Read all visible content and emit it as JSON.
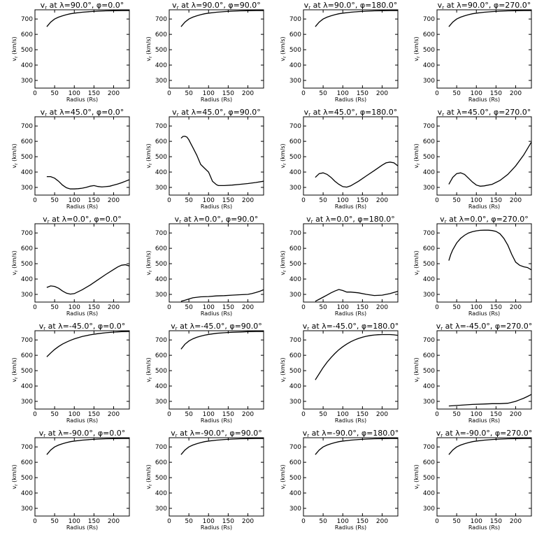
{
  "chart_data": [
    {
      "type": "line",
      "title": "v_r at λ=90.0°, φ=0.0°",
      "xlabel": "Radius (Rs)",
      "ylabel": "v_r (km/s)",
      "xlim": [
        0,
        240
      ],
      "ylim": [
        250,
        760
      ],
      "x": [
        30,
        40,
        50,
        60,
        70,
        80,
        90,
        100,
        120,
        140,
        160,
        180,
        200,
        220,
        240
      ],
      "y": [
        650,
        680,
        700,
        712,
        721,
        728,
        734,
        738,
        744,
        748,
        751,
        753,
        754,
        755,
        755
      ]
    },
    {
      "type": "line",
      "title": "v_r at λ=90.0°, φ=90.0°",
      "xlabel": "Radius (Rs)",
      "ylabel": "v_r (km/s)",
      "xlim": [
        0,
        240
      ],
      "ylim": [
        250,
        760
      ],
      "x": [
        30,
        40,
        50,
        60,
        70,
        80,
        90,
        100,
        120,
        140,
        160,
        180,
        200,
        220,
        240
      ],
      "y": [
        650,
        680,
        700,
        712,
        721,
        728,
        734,
        738,
        744,
        748,
        751,
        753,
        754,
        755,
        755
      ]
    },
    {
      "type": "line",
      "title": "v_r at λ=90.0°, φ=180.0°",
      "xlabel": "Radius (Rs)",
      "ylabel": "v_r (km/s)",
      "xlim": [
        0,
        240
      ],
      "ylim": [
        250,
        760
      ],
      "x": [
        30,
        40,
        50,
        60,
        70,
        80,
        90,
        100,
        120,
        140,
        160,
        180,
        200,
        220,
        240
      ],
      "y": [
        650,
        680,
        700,
        712,
        721,
        728,
        734,
        738,
        744,
        748,
        751,
        753,
        754,
        755,
        755
      ]
    },
    {
      "type": "line",
      "title": "v_r at λ=90.0°, φ=270.0°",
      "xlabel": "Radius (Rs)",
      "ylabel": "v_r (km/s)",
      "xlim": [
        0,
        240
      ],
      "ylim": [
        250,
        760
      ],
      "x": [
        30,
        40,
        50,
        60,
        70,
        80,
        90,
        100,
        120,
        140,
        160,
        180,
        200,
        220,
        240
      ],
      "y": [
        650,
        680,
        700,
        712,
        721,
        728,
        734,
        738,
        744,
        748,
        751,
        753,
        754,
        755,
        755
      ]
    },
    {
      "type": "line",
      "title": "v_r at λ=45.0°, φ=0.0°",
      "xlabel": "Radius (Rs)",
      "ylabel": "v_r (km/s)",
      "xlim": [
        0,
        240
      ],
      "ylim": [
        250,
        760
      ],
      "x": [
        30,
        40,
        50,
        60,
        70,
        80,
        90,
        100,
        110,
        120,
        130,
        140,
        150,
        160,
        170,
        180,
        190,
        200,
        210,
        220,
        230,
        240
      ],
      "y": [
        370,
        370,
        360,
        340,
        315,
        298,
        290,
        290,
        292,
        295,
        300,
        308,
        312,
        306,
        303,
        305,
        308,
        315,
        322,
        330,
        340,
        350
      ]
    },
    {
      "type": "line",
      "title": "v_r at λ=45.0°, φ=90.0°",
      "xlabel": "Radius (Rs)",
      "ylabel": "v_r (km/s)",
      "xlim": [
        0,
        240
      ],
      "ylim": [
        250,
        760
      ],
      "x": [
        30,
        35,
        40,
        45,
        50,
        55,
        60,
        70,
        80,
        90,
        100,
        110,
        120,
        125,
        130,
        140,
        160,
        180,
        200,
        220,
        240
      ],
      "y": [
        620,
        632,
        633,
        628,
        610,
        585,
        560,
        510,
        450,
        425,
        400,
        340,
        318,
        312,
        312,
        312,
        315,
        320,
        325,
        332,
        340
      ]
    },
    {
      "type": "line",
      "title": "v_r at λ=45.0°, φ=180.0°",
      "xlabel": "Radius (Rs)",
      "ylabel": "v_r (km/s)",
      "xlim": [
        0,
        240
      ],
      "ylim": [
        250,
        760
      ],
      "x": [
        30,
        40,
        50,
        60,
        70,
        80,
        90,
        100,
        110,
        120,
        140,
        160,
        180,
        200,
        210,
        220,
        230,
        240
      ],
      "y": [
        365,
        390,
        395,
        385,
        365,
        340,
        320,
        305,
        302,
        310,
        340,
        375,
        410,
        445,
        460,
        465,
        460,
        440
      ]
    },
    {
      "type": "line",
      "title": "v_r at λ=45.0°, φ=270.0°",
      "xlabel": "Radius (Rs)",
      "ylabel": "v_r (km/s)",
      "xlim": [
        0,
        240
      ],
      "ylim": [
        250,
        760
      ],
      "x": [
        30,
        40,
        50,
        60,
        70,
        80,
        90,
        100,
        110,
        120,
        140,
        160,
        180,
        200,
        220,
        240
      ],
      "y": [
        320,
        365,
        390,
        395,
        385,
        360,
        335,
        315,
        308,
        310,
        320,
        345,
        385,
        440,
        510,
        595
      ]
    },
    {
      "type": "line",
      "title": "v_r at λ=0.0°, φ=0.0°",
      "xlabel": "Radius (Rs)",
      "ylabel": "v_r (km/s)",
      "xlim": [
        0,
        240
      ],
      "ylim": [
        250,
        760
      ],
      "x": [
        30,
        40,
        50,
        60,
        70,
        80,
        90,
        100,
        120,
        140,
        160,
        180,
        200,
        210,
        220,
        230,
        240
      ],
      "y": [
        345,
        355,
        352,
        340,
        322,
        308,
        302,
        305,
        330,
        360,
        395,
        430,
        462,
        478,
        490,
        493,
        485
      ]
    },
    {
      "type": "line",
      "title": "v_r at λ=0.0°, φ=90.0°",
      "xlabel": "Radius (Rs)",
      "ylabel": "v_r (km/s)",
      "xlim": [
        0,
        240
      ],
      "ylim": [
        250,
        760
      ],
      "x": [
        30,
        40,
        50,
        60,
        80,
        100,
        120,
        140,
        160,
        180,
        200,
        210,
        220,
        230,
        240
      ],
      "y": [
        255,
        262,
        270,
        278,
        284,
        286,
        290,
        292,
        295,
        298,
        300,
        305,
        312,
        320,
        330
      ]
    },
    {
      "type": "line",
      "title": "v_r at λ=0.0°, φ=180.0°",
      "xlabel": "Radius (Rs)",
      "ylabel": "v_r (km/s)",
      "xlim": [
        0,
        240
      ],
      "ylim": [
        250,
        760
      ],
      "x": [
        30,
        40,
        50,
        60,
        70,
        80,
        90,
        100,
        110,
        120,
        140,
        160,
        180,
        200,
        220,
        240
      ],
      "y": [
        255,
        268,
        282,
        296,
        310,
        322,
        332,
        325,
        315,
        315,
        310,
        300,
        293,
        295,
        305,
        320
      ]
    },
    {
      "type": "line",
      "title": "v_r at λ=0.0°, φ=270.0°",
      "xlabel": "Radius (Rs)",
      "ylabel": "v_r (km/s)",
      "xlim": [
        0,
        240
      ],
      "ylim": [
        250,
        760
      ],
      "x": [
        30,
        35,
        40,
        50,
        60,
        70,
        80,
        90,
        100,
        110,
        120,
        130,
        140,
        150,
        160,
        170,
        180,
        190,
        200,
        210,
        220,
        230,
        240
      ],
      "y": [
        520,
        560,
        590,
        635,
        665,
        685,
        700,
        708,
        714,
        717,
        718,
        718,
        716,
        710,
        695,
        665,
        620,
        560,
        510,
        490,
        480,
        475,
        460
      ]
    },
    {
      "type": "line",
      "title": "v_r at λ=-45.0°, φ=0.0°",
      "xlabel": "Radius (Rs)",
      "ylabel": "v_r (km/s)",
      "xlim": [
        0,
        240
      ],
      "ylim": [
        250,
        760
      ],
      "x": [
        30,
        40,
        50,
        60,
        70,
        80,
        90,
        100,
        120,
        140,
        160,
        180,
        200,
        220,
        240
      ],
      "y": [
        590,
        615,
        638,
        657,
        673,
        686,
        697,
        707,
        722,
        733,
        741,
        747,
        751,
        754,
        755
      ]
    },
    {
      "type": "line",
      "title": "v_r at λ=-45.0°, φ=90.0°",
      "xlabel": "Radius (Rs)",
      "ylabel": "v_r (km/s)",
      "xlim": [
        0,
        240
      ],
      "ylim": [
        250,
        760
      ],
      "x": [
        30,
        40,
        50,
        60,
        70,
        80,
        90,
        100,
        120,
        140,
        160,
        180,
        200,
        220,
        240
      ],
      "y": [
        640,
        672,
        693,
        707,
        717,
        725,
        731,
        736,
        743,
        747,
        750,
        752,
        754,
        755,
        755
      ]
    },
    {
      "type": "line",
      "title": "v_r at λ=-45.0°, φ=180.0°",
      "xlabel": "Radius (Rs)",
      "ylabel": "v_r (km/s)",
      "xlim": [
        0,
        240
      ],
      "ylim": [
        250,
        760
      ],
      "x": [
        30,
        40,
        50,
        60,
        70,
        80,
        90,
        100,
        110,
        120,
        130,
        140,
        150,
        160,
        170,
        180,
        190,
        200,
        210,
        220,
        230,
        240
      ],
      "y": [
        440,
        480,
        520,
        555,
        585,
        612,
        636,
        656,
        673,
        688,
        700,
        710,
        718,
        724,
        729,
        732,
        734,
        735,
        735,
        735,
        733,
        730
      ]
    },
    {
      "type": "line",
      "title": "v_r at λ=-45.0°, φ=270.0°",
      "xlabel": "Radius (Rs)",
      "ylabel": "v_r (km/s)",
      "xlim": [
        0,
        240
      ],
      "ylim": [
        250,
        760
      ],
      "x": [
        30,
        60,
        90,
        120,
        140,
        160,
        180,
        200,
        210,
        220,
        230,
        240
      ],
      "y": [
        270,
        275,
        280,
        283,
        285,
        285,
        288,
        300,
        310,
        320,
        332,
        345
      ]
    },
    {
      "type": "line",
      "title": "v_r at λ=-90.0°, φ=0.0°",
      "xlabel": "Radius (Rs)",
      "ylabel": "v_r (km/s)",
      "xlim": [
        0,
        240
      ],
      "ylim": [
        250,
        760
      ],
      "x": [
        30,
        40,
        50,
        60,
        70,
        80,
        90,
        100,
        120,
        140,
        160,
        180,
        200,
        220,
        240
      ],
      "y": [
        650,
        680,
        700,
        712,
        721,
        728,
        734,
        738,
        744,
        748,
        751,
        753,
        754,
        755,
        755
      ]
    },
    {
      "type": "line",
      "title": "v_r at λ=-90.0°, φ=90.0°",
      "xlabel": "Radius (Rs)",
      "ylabel": "v_r (km/s)",
      "xlim": [
        0,
        240
      ],
      "ylim": [
        250,
        760
      ],
      "x": [
        30,
        40,
        50,
        60,
        70,
        80,
        90,
        100,
        120,
        140,
        160,
        180,
        200,
        220,
        240
      ],
      "y": [
        650,
        680,
        700,
        712,
        721,
        728,
        734,
        738,
        744,
        748,
        751,
        753,
        754,
        755,
        755
      ]
    },
    {
      "type": "line",
      "title": "v_r at λ=-90.0°, φ=180.0°",
      "xlabel": "Radius (Rs)",
      "ylabel": "v_r (km/s)",
      "xlim": [
        0,
        240
      ],
      "ylim": [
        250,
        760
      ],
      "x": [
        30,
        40,
        50,
        60,
        70,
        80,
        90,
        100,
        120,
        140,
        160,
        180,
        200,
        220,
        240
      ],
      "y": [
        650,
        680,
        700,
        712,
        721,
        728,
        734,
        738,
        744,
        748,
        751,
        753,
        754,
        755,
        755
      ]
    },
    {
      "type": "line",
      "title": "v_r at λ=-90.0°, φ=270.0°",
      "xlabel": "Radius (Rs)",
      "ylabel": "v_r (km/s)",
      "xlim": [
        0,
        240
      ],
      "ylim": [
        250,
        760
      ],
      "x": [
        30,
        40,
        50,
        60,
        70,
        80,
        90,
        100,
        120,
        140,
        160,
        180,
        200,
        220,
        240
      ],
      "y": [
        650,
        680,
        700,
        712,
        721,
        728,
        734,
        738,
        744,
        748,
        751,
        753,
        754,
        755,
        755
      ]
    }
  ],
  "axes": {
    "xticks": [
      0,
      50,
      100,
      150,
      200
    ],
    "yticks": [
      300,
      400,
      500,
      600,
      700
    ]
  }
}
